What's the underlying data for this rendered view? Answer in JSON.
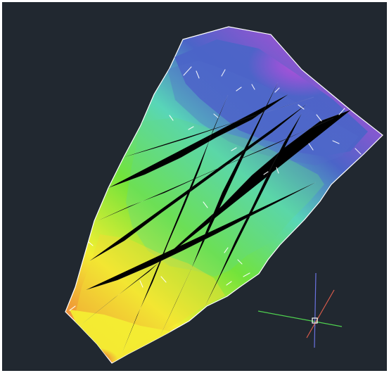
{
  "viewport": {
    "background": "#212830"
  },
  "surface": {
    "kind": "terrain-mesh",
    "palette": {
      "low": "#e8554f",
      "low_mid": "#f0a236",
      "mid": "#f4ef32",
      "mid_high": "#72e33b",
      "high": "#58d6b8",
      "higher": "#4b64c8",
      "top": "#b34fd6"
    }
  },
  "ucs_icon": {
    "x_axis_color": "#4fd04f",
    "y_axis_color": "#6a72e0",
    "z_axis_color": "#d85b4b",
    "origin_color": "#ffffff"
  }
}
